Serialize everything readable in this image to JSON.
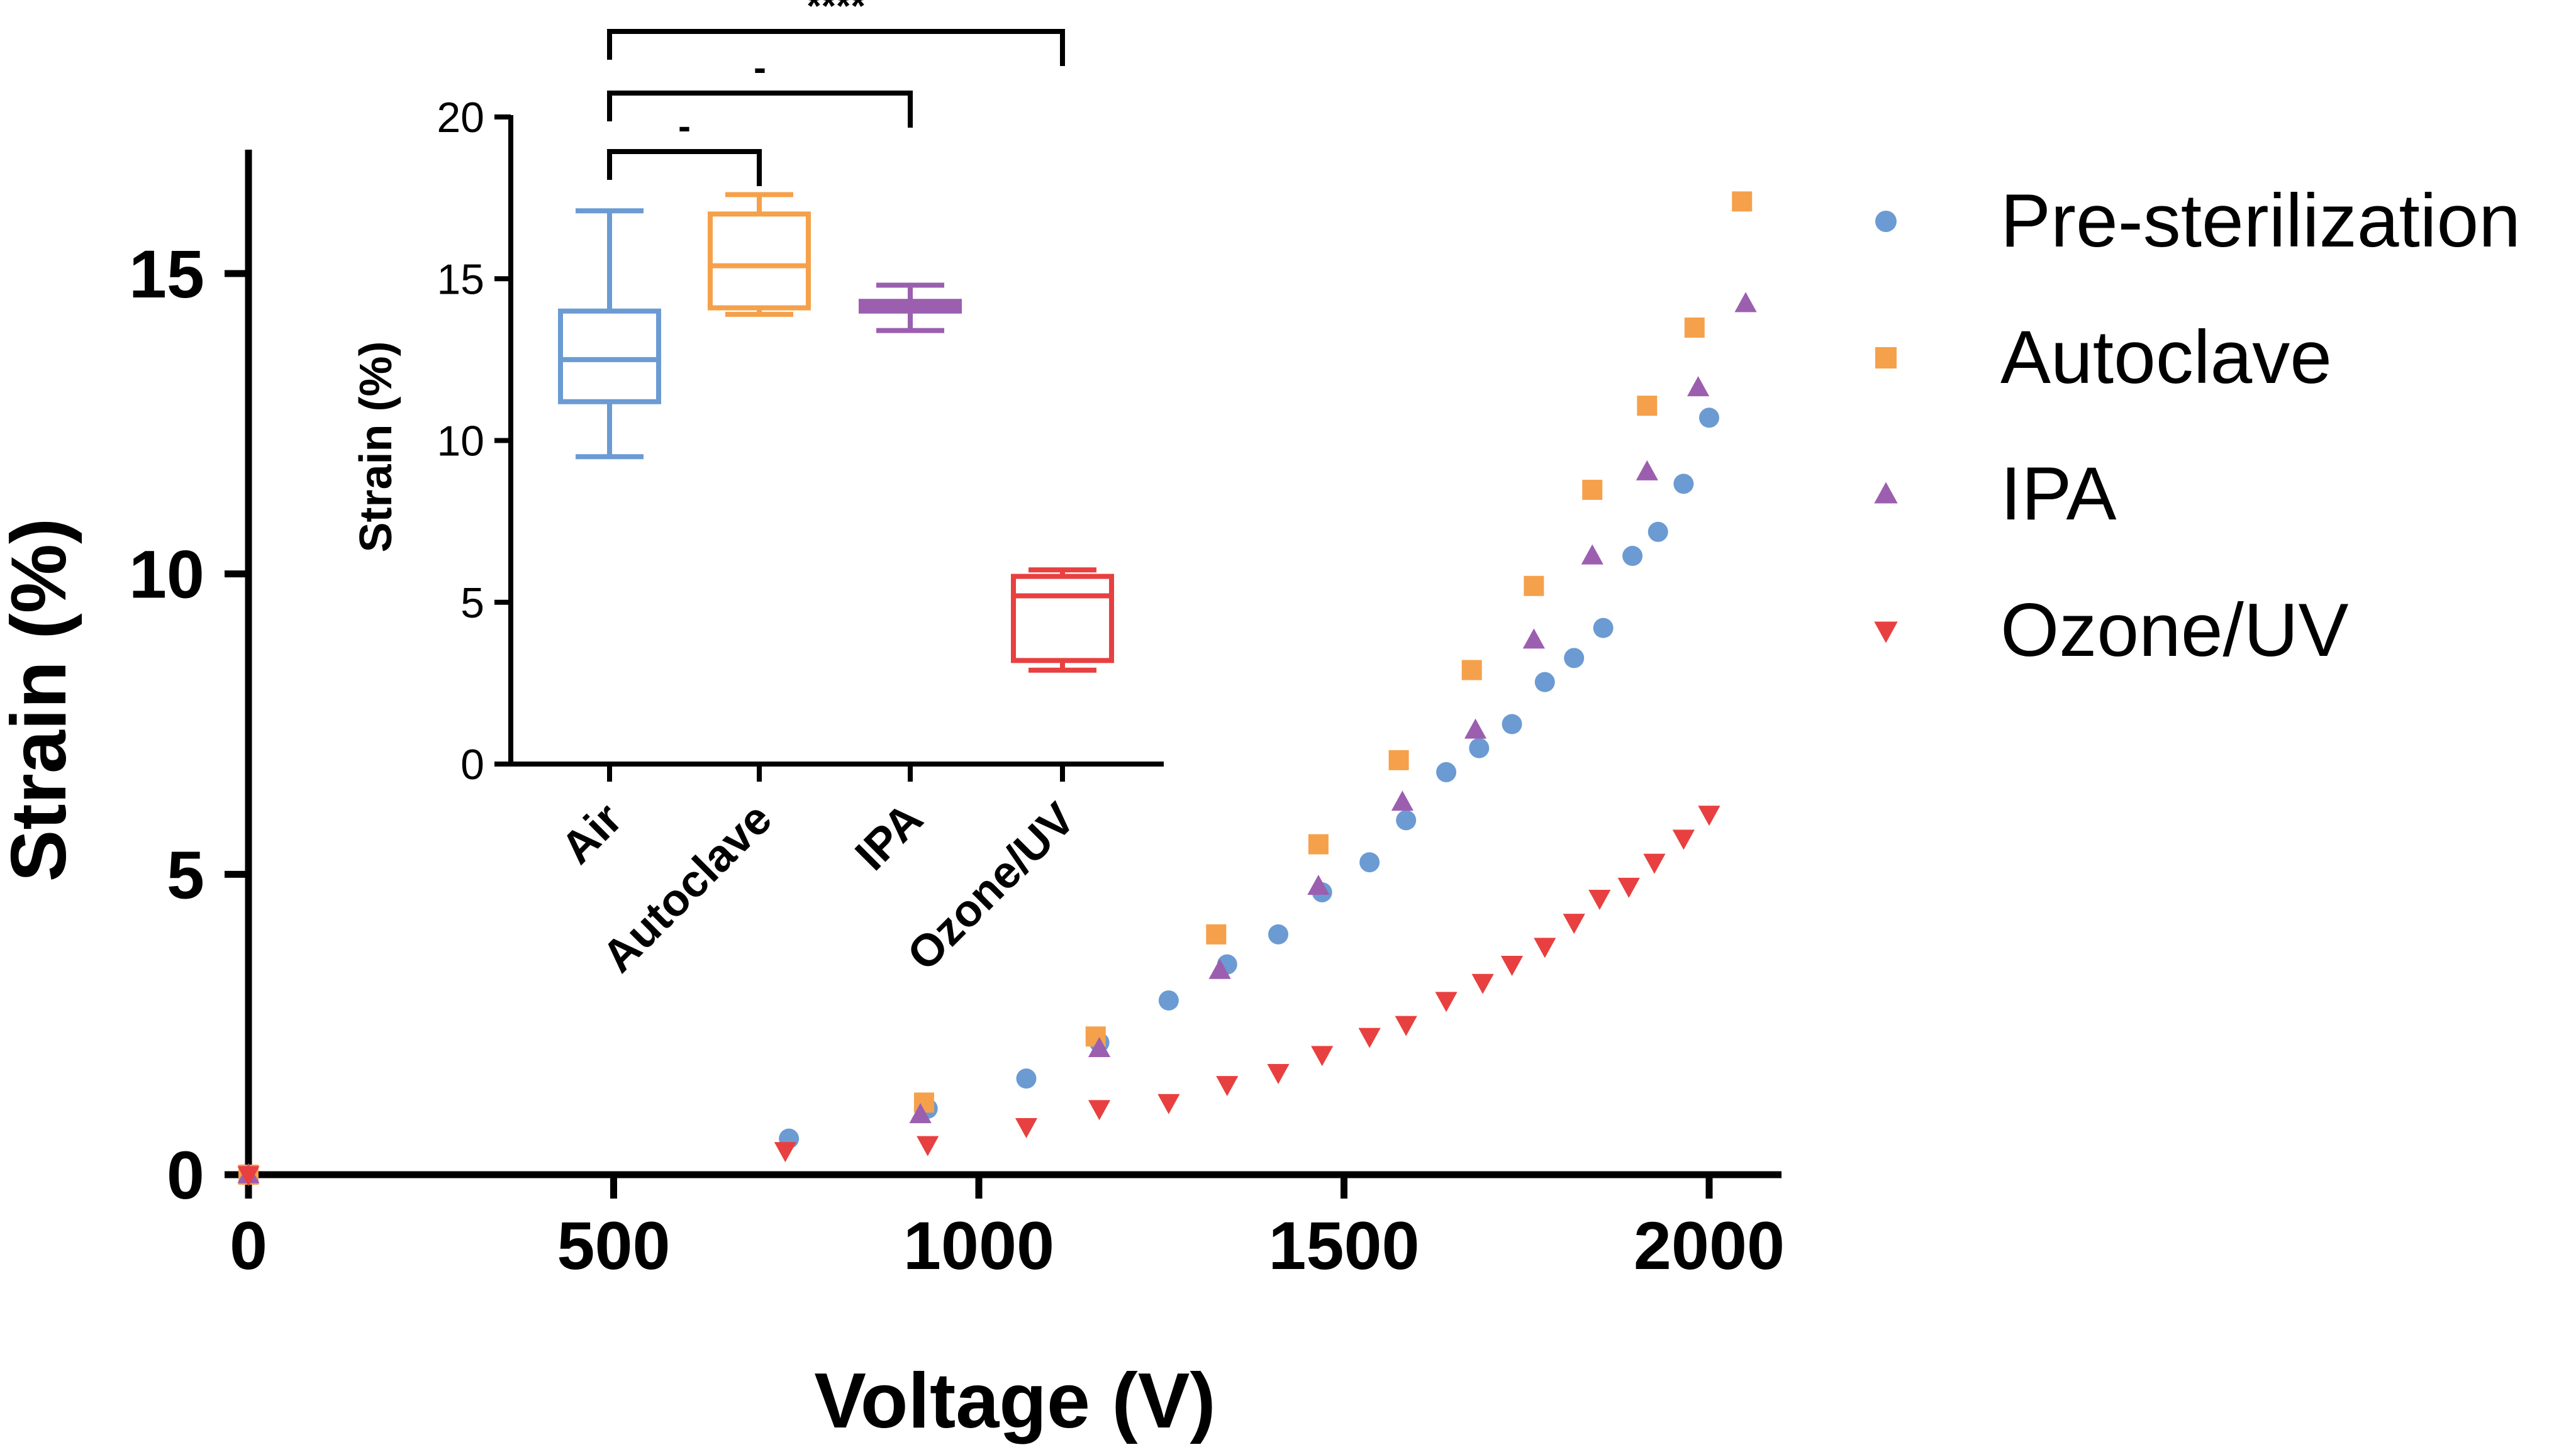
{
  "chart_data": [
    {
      "type": "scatter",
      "title": "",
      "xlabel": "Voltage (V)",
      "ylabel": "Strain (%)",
      "xlim": [
        0,
        2100
      ],
      "ylim": [
        0,
        17
      ],
      "x_ticks": [
        "0",
        "500",
        "1000",
        "1500",
        "2000"
      ],
      "y_ticks": [
        "0",
        "5",
        "10",
        "15"
      ],
      "legend_position": "right",
      "series": [
        {
          "name": "Pre-sterilization",
          "color": "#6b9bd2",
          "marker": "circle",
          "points": [
            [
              0,
              0
            ],
            [
              740,
              0.6
            ],
            [
              930,
              1.1
            ],
            [
              1065,
              1.6
            ],
            [
              1165,
              2.2
            ],
            [
              1260,
              2.9
            ],
            [
              1340,
              3.5
            ],
            [
              1410,
              4.0
            ],
            [
              1470,
              4.7
            ],
            [
              1535,
              5.2
            ],
            [
              1585,
              5.9
            ],
            [
              1640,
              6.7
            ],
            [
              1685,
              7.1
            ],
            [
              1730,
              7.5
            ],
            [
              1775,
              8.2
            ],
            [
              1815,
              8.6
            ],
            [
              1855,
              9.1
            ],
            [
              1895,
              10.3
            ],
            [
              1930,
              10.7
            ],
            [
              1965,
              11.5
            ],
            [
              2000,
              12.6
            ]
          ]
        },
        {
          "name": "Autoclave",
          "color": "#f5a04a",
          "marker": "square",
          "points": [
            [
              0,
              0
            ],
            [
              925,
              1.2
            ],
            [
              1160,
              2.3
            ],
            [
              1325,
              4.0
            ],
            [
              1465,
              5.5
            ],
            [
              1575,
              6.9
            ],
            [
              1675,
              8.4
            ],
            [
              1760,
              9.8
            ],
            [
              1840,
              11.4
            ],
            [
              1915,
              12.8
            ],
            [
              1980,
              14.1
            ],
            [
              2045,
              16.2
            ]
          ]
        },
        {
          "name": "IPA",
          "color": "#9c5fb0",
          "marker": "triangle-up",
          "points": [
            [
              0,
              0
            ],
            [
              920,
              1.0
            ],
            [
              1165,
              2.1
            ],
            [
              1330,
              3.4
            ],
            [
              1465,
              4.8
            ],
            [
              1580,
              6.2
            ],
            [
              1680,
              7.4
            ],
            [
              1760,
              8.9
            ],
            [
              1840,
              10.3
            ],
            [
              1915,
              11.7
            ],
            [
              1985,
              13.1
            ],
            [
              2050,
              14.5
            ]
          ]
        },
        {
          "name": "Ozone/UV",
          "color": "#e84040",
          "marker": "triangle-down",
          "points": [
            [
              0,
              0
            ],
            [
              735,
              0.4
            ],
            [
              930,
              0.5
            ],
            [
              1065,
              0.8
            ],
            [
              1165,
              1.1
            ],
            [
              1260,
              1.2
            ],
            [
              1340,
              1.5
            ],
            [
              1410,
              1.7
            ],
            [
              1470,
              2.0
            ],
            [
              1535,
              2.3
            ],
            [
              1585,
              2.5
            ],
            [
              1640,
              2.9
            ],
            [
              1690,
              3.2
            ],
            [
              1730,
              3.5
            ],
            [
              1775,
              3.8
            ],
            [
              1815,
              4.2
            ],
            [
              1850,
              4.6
            ],
            [
              1890,
              4.8
            ],
            [
              1925,
              5.2
            ],
            [
              1965,
              5.6
            ],
            [
              2000,
              6.0
            ]
          ]
        }
      ]
    },
    {
      "type": "box",
      "title": "",
      "xlabel": "",
      "ylabel": "Strain (%)",
      "ylim": [
        0,
        20
      ],
      "y_ticks": [
        "0",
        "5",
        "10",
        "15",
        "20"
      ],
      "categories": [
        "Air",
        "Autoclave",
        "IPA",
        "Ozone/UV"
      ],
      "colors": [
        "#6b9bd2",
        "#f5a04a",
        "#9c5fb0",
        "#e84040"
      ],
      "boxes": [
        {
          "min": 9.5,
          "q1": 11.2,
          "median": 12.5,
          "q3": 14.0,
          "max": 17.1
        },
        {
          "min": 13.9,
          "q1": 14.1,
          "median": 15.4,
          "q3": 17.0,
          "max": 17.6
        },
        {
          "min": 13.4,
          "q1": 14.0,
          "median": 14.15,
          "q3": 14.3,
          "max": 14.8
        },
        {
          "min": 2.9,
          "q1": 3.2,
          "median": 5.2,
          "q3": 5.8,
          "max": 6.0
        }
      ],
      "significance": [
        {
          "from": "Air",
          "to": "Autoclave",
          "label": "-"
        },
        {
          "from": "Air",
          "to": "IPA",
          "label": "-"
        },
        {
          "from": "Air",
          "to": "Ozone/UV",
          "label": "****"
        }
      ]
    }
  ]
}
